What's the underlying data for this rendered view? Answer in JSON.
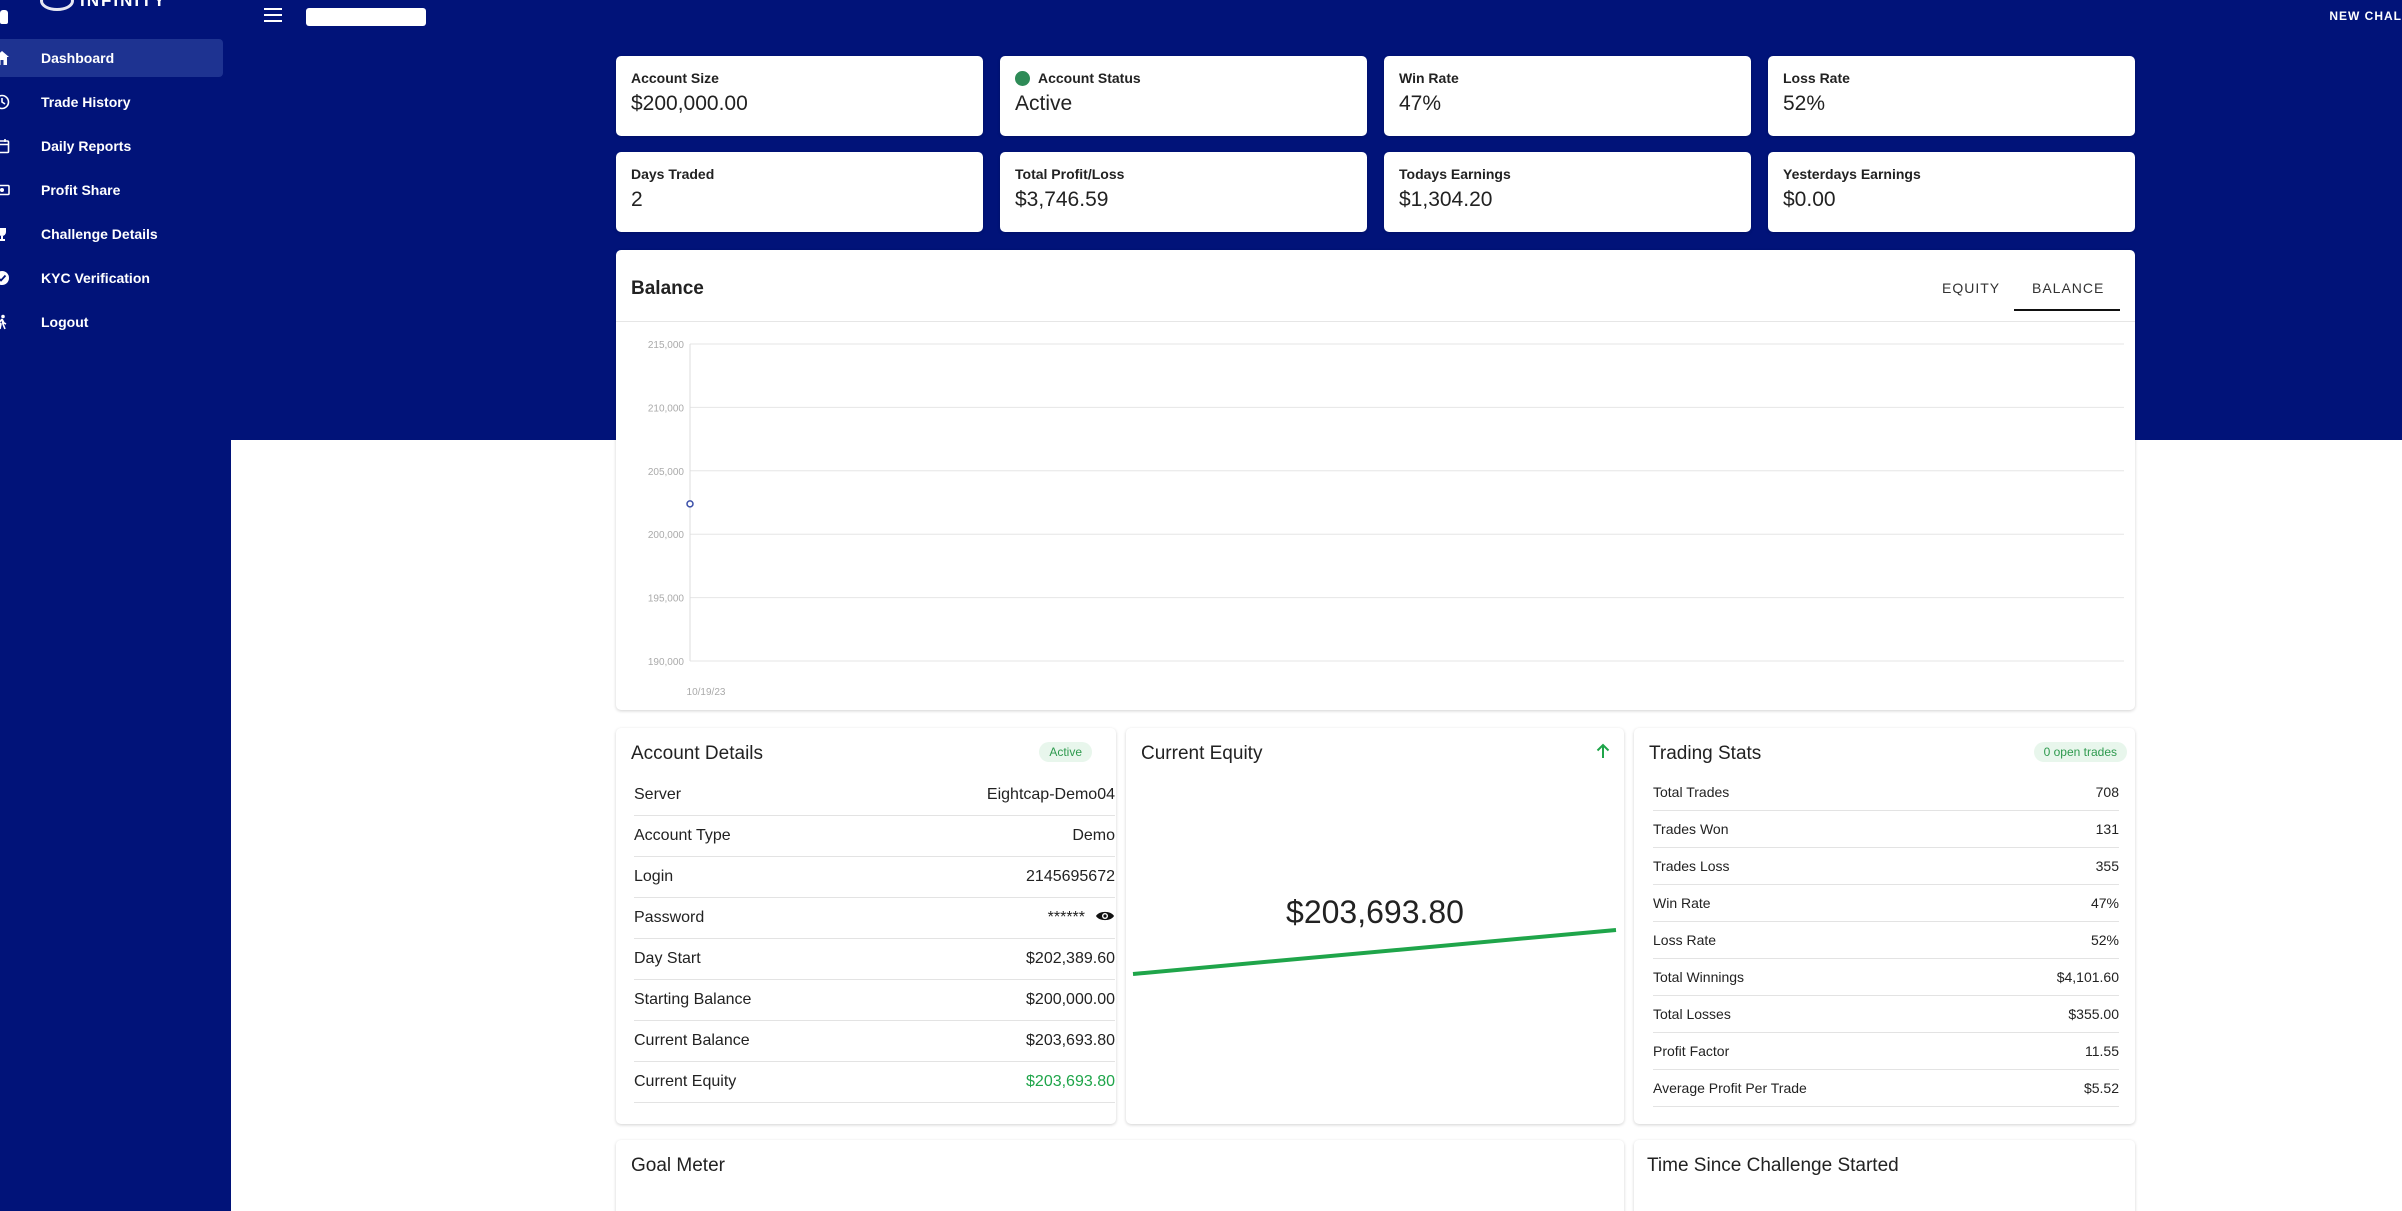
{
  "app": {
    "logo_text": "INFINITY",
    "new_challenge_label": "NEW CHAL"
  },
  "sidebar": {
    "items": [
      {
        "label": "Dashboard",
        "icon": "home-icon",
        "active": true
      },
      {
        "label": "Trade History",
        "icon": "history-icon"
      },
      {
        "label": "Daily Reports",
        "icon": "calendar-icon"
      },
      {
        "label": "Profit Share",
        "icon": "money-icon"
      },
      {
        "label": "Challenge Details",
        "icon": "trophy-icon"
      },
      {
        "label": "KYC Verification",
        "icon": "verified-badge-icon"
      },
      {
        "label": "Logout",
        "icon": "walking-person-icon"
      }
    ]
  },
  "stats": [
    {
      "title": "Account Size",
      "value": "$200,000.00"
    },
    {
      "title": "Account Status",
      "value": "Active",
      "dot": true
    },
    {
      "title": "Win Rate",
      "value": "47%"
    },
    {
      "title": "Loss Rate",
      "value": "52%"
    },
    {
      "title": "Days Traded",
      "value": "2"
    },
    {
      "title": "Total Profit/Loss",
      "value": "$3,746.59"
    },
    {
      "title": "Todays Earnings",
      "value": "$1,304.20"
    },
    {
      "title": "Yesterdays Earnings",
      "value": "$0.00"
    }
  ],
  "balance_chart": {
    "title": "Balance",
    "tabs": [
      "EQUITY",
      "BALANCE"
    ],
    "active_tab": "BALANCE"
  },
  "chart_data": {
    "type": "line",
    "title": "Balance",
    "x": [
      "10/19/23"
    ],
    "series": [
      {
        "values": [
          202389.6
        ]
      }
    ],
    "y_ticks": [
      "215,000",
      "210,000",
      "205,000",
      "200,000",
      "195,000",
      "190,000"
    ],
    "x_tick_labels": [
      "10/19/23"
    ],
    "ylim": [
      190000,
      215000
    ],
    "grid": true,
    "colors": {
      "point": "#3b4fa8",
      "grid": "#e6e6e6",
      "tick": "#aaaaaa"
    }
  },
  "account_details": {
    "title": "Account Details",
    "badge": "Active",
    "rows": [
      {
        "key": "Server",
        "value": "Eightcap-Demo04"
      },
      {
        "key": "Account Type",
        "value": "Demo"
      },
      {
        "key": "Login",
        "value": "2145695672"
      },
      {
        "key": "Password",
        "value": "******",
        "eye": true
      },
      {
        "key": "Day Start",
        "value": "$202,389.60"
      },
      {
        "key": "Starting Balance",
        "value": "$200,000.00"
      },
      {
        "key": "Current Balance",
        "value": "$203,693.80"
      },
      {
        "key": "Current Equity",
        "value": "$203,693.80",
        "highlight": true
      }
    ]
  },
  "current_equity": {
    "title": "Current Equity",
    "value": "$203,693.80",
    "trend_icon": "arrow-up-icon",
    "line_color": "#1fa54a"
  },
  "trading_stats": {
    "title": "Trading Stats",
    "badge": "0 open trades",
    "rows": [
      {
        "key": "Total Trades",
        "value": "708"
      },
      {
        "key": "Trades Won",
        "value": "131"
      },
      {
        "key": "Trades Loss",
        "value": "355"
      },
      {
        "key": "Win Rate",
        "value": "47%"
      },
      {
        "key": "Loss Rate",
        "value": "52%"
      },
      {
        "key": "Total Winnings",
        "value": "$4,101.60"
      },
      {
        "key": "Total Losses",
        "value": "$355.00"
      },
      {
        "key": "Profit Factor",
        "value": "11.55"
      },
      {
        "key": "Average Profit Per Trade",
        "value": "$5.52"
      }
    ]
  },
  "goal_meter": {
    "title": "Goal Meter"
  },
  "time_since": {
    "title": "Time Since Challenge Started"
  },
  "colors": {
    "brand_navy": "#011379",
    "active_nav": "#1e3391",
    "success_green": "#1fa54a"
  }
}
